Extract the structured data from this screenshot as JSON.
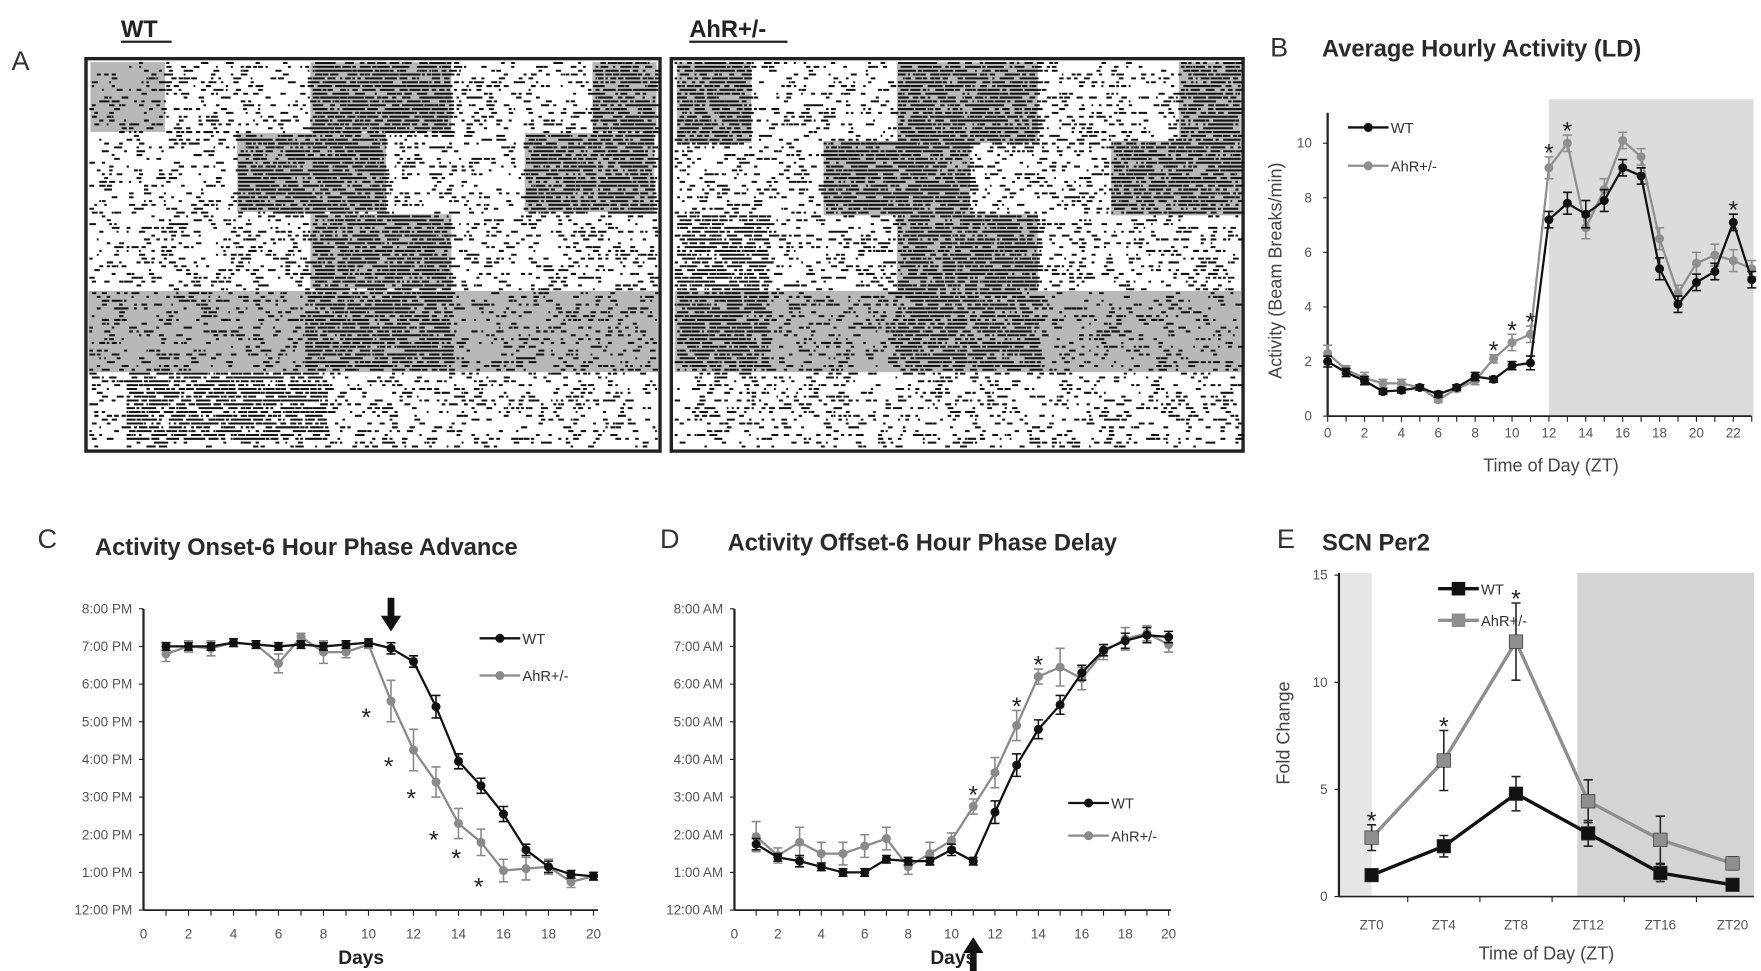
{
  "panel_labels": {
    "A": "A",
    "B": "B",
    "C": "C",
    "D": "D",
    "E": "E"
  },
  "actogram": {
    "wt_label": "WT",
    "ahr_label": "AhR+/-"
  },
  "chart_data": [
    {
      "id": "B",
      "type": "line",
      "title": "Average Hourly Activity (LD)",
      "xlabel": "Time of Day (ZT)",
      "ylabel": "Activity (Beam Breaks/min)",
      "x": [
        0,
        1,
        2,
        3,
        4,
        5,
        6,
        7,
        8,
        9,
        10,
        11,
        12,
        13,
        14,
        15,
        16,
        17,
        18,
        19,
        20,
        21,
        22,
        23
      ],
      "xticks": [
        0,
        2,
        4,
        6,
        8,
        10,
        12,
        14,
        16,
        18,
        20,
        22
      ],
      "yticks": [
        {
          "v": 0,
          "label": "0"
        },
        {
          "v": 2,
          "label": "2"
        },
        {
          "v": 4,
          "label": "4"
        },
        {
          "v": 6,
          "label": "6"
        },
        {
          "v": 8,
          "label": "8"
        },
        {
          "v": 10,
          "label": "10"
        }
      ],
      "ylim": [
        0,
        10.8
      ],
      "shaded_regions": [
        {
          "from": 12,
          "to": 23.1,
          "shade": "#dcdcdc"
        }
      ],
      "series": [
        {
          "name": "WT",
          "color": "#111111",
          "marker": "circle",
          "values": [
            2.0,
            1.6,
            1.3,
            0.9,
            0.95,
            1.05,
            0.8,
            1.05,
            1.45,
            1.35,
            1.85,
            1.95,
            7.2,
            7.8,
            7.4,
            7.9,
            9.1,
            8.8,
            5.4,
            4.1,
            4.9,
            5.3,
            7.1,
            5.0
          ],
          "errors": [
            0.2,
            0.15,
            0.15,
            0.1,
            0.1,
            0.1,
            0.1,
            0.1,
            0.15,
            0.1,
            0.15,
            0.25,
            0.3,
            0.4,
            0.5,
            0.4,
            0.3,
            0.3,
            0.4,
            0.3,
            0.3,
            0.3,
            0.3,
            0.3
          ]
        },
        {
          "name": "AhR+/-",
          "color": "#8f8f8f",
          "marker": "circle",
          "values": [
            2.3,
            1.7,
            1.4,
            1.2,
            1.2,
            1.05,
            0.6,
            1.0,
            1.3,
            2.1,
            2.7,
            3.0,
            9.1,
            10.0,
            6.9,
            8.3,
            10.1,
            9.5,
            6.5,
            4.5,
            5.6,
            5.9,
            5.7,
            5.4
          ],
          "errors": [
            0.3,
            0.15,
            0.2,
            0.15,
            0.15,
            0.1,
            0.1,
            0.1,
            0.15,
            0.15,
            0.3,
            0.3,
            0.4,
            0.3,
            0.4,
            0.4,
            0.3,
            0.3,
            0.4,
            0.3,
            0.4,
            0.4,
            0.4,
            0.3
          ]
        }
      ],
      "significant": [
        9,
        10,
        11,
        12,
        13,
        22
      ],
      "asterisk": "*",
      "legend": "top-left"
    },
    {
      "id": "C",
      "type": "line",
      "title": "Activity Onset-6 Hour Phase Advance",
      "xlabel": "Days",
      "ylabel": "",
      "x": [
        1,
        2,
        3,
        4,
        5,
        6,
        7,
        8,
        9,
        10,
        11,
        12,
        13,
        14,
        15,
        16,
        17,
        18,
        19,
        20
      ],
      "xticks": [
        0,
        2,
        4,
        6,
        8,
        10,
        12,
        14,
        16,
        18,
        20
      ],
      "yticks": [
        {
          "v": 12,
          "label": "12:00 PM"
        },
        {
          "v": 13,
          "label": "1:00 PM"
        },
        {
          "v": 14,
          "label": "2:00 PM"
        },
        {
          "v": 15,
          "label": "3:00 PM"
        },
        {
          "v": 16,
          "label": "4:00 PM"
        },
        {
          "v": 17,
          "label": "5:00 PM"
        },
        {
          "v": 18,
          "label": "6:00 PM"
        },
        {
          "v": 19,
          "label": "7:00 PM"
        },
        {
          "v": 20,
          "label": "8:00 PM"
        }
      ],
      "ylim": [
        12,
        20
      ],
      "series": [
        {
          "name": "WT",
          "color": "#111111",
          "marker": "circle",
          "values": [
            19.0,
            19.0,
            19.0,
            19.1,
            19.05,
            19.0,
            19.05,
            19.0,
            19.05,
            19.1,
            18.95,
            18.6,
            17.4,
            15.95,
            15.3,
            14.55,
            13.6,
            13.15,
            12.95,
            12.9
          ],
          "errors": [
            0.1,
            0.1,
            0.1,
            0.1,
            0.1,
            0.1,
            0.1,
            0.1,
            0.1,
            0.1,
            0.15,
            0.15,
            0.3,
            0.2,
            0.2,
            0.2,
            0.15,
            0.15,
            0.1,
            0.1
          ]
        },
        {
          "name": "AhR+/-",
          "color": "#8a8a8a",
          "marker": "circle",
          "values": [
            18.8,
            19.0,
            18.95,
            19.1,
            19.05,
            18.55,
            19.25,
            18.85,
            18.85,
            19.05,
            17.55,
            16.25,
            15.4,
            14.3,
            13.8,
            13.05,
            13.1,
            13.15,
            12.75,
            12.9
          ],
          "errors": [
            0.2,
            0.15,
            0.2,
            0.1,
            0.1,
            0.25,
            0.1,
            0.3,
            0.15,
            0.1,
            0.55,
            0.55,
            0.4,
            0.4,
            0.35,
            0.3,
            0.3,
            0.2,
            0.15,
            0.1
          ]
        }
      ],
      "significant": [
        11,
        12,
        13,
        14,
        15,
        16
      ],
      "asterisk": "*",
      "shift_marker": {
        "day": 11,
        "direction": "down"
      },
      "legend": "top-right"
    },
    {
      "id": "D",
      "type": "line",
      "title": "Activity Offset-6 Hour Phase Delay",
      "xlabel": "Days",
      "ylabel": "",
      "x": [
        1,
        2,
        3,
        4,
        5,
        6,
        7,
        8,
        9,
        10,
        11,
        12,
        13,
        14,
        15,
        16,
        17,
        18,
        19,
        20
      ],
      "xticks": [
        0,
        2,
        4,
        6,
        8,
        10,
        12,
        14,
        16,
        18,
        20
      ],
      "yticks": [
        {
          "v": 0,
          "label": "12:00 AM"
        },
        {
          "v": 1,
          "label": "1:00 AM"
        },
        {
          "v": 2,
          "label": "2:00 AM"
        },
        {
          "v": 3,
          "label": "3:00 AM"
        },
        {
          "v": 4,
          "label": "4:00 AM"
        },
        {
          "v": 5,
          "label": "5:00 AM"
        },
        {
          "v": 6,
          "label": "6:00 AM"
        },
        {
          "v": 7,
          "label": "7:00 AM"
        },
        {
          "v": 8,
          "label": "8:00 AM"
        }
      ],
      "ylim": [
        0,
        8
      ],
      "series": [
        {
          "name": "WT",
          "color": "#111111",
          "marker": "circle",
          "values": [
            1.75,
            1.4,
            1.3,
            1.15,
            1.0,
            1.0,
            1.35,
            1.3,
            1.3,
            1.6,
            1.3,
            2.6,
            3.85,
            4.8,
            5.45,
            6.3,
            6.9,
            7.15,
            7.3,
            7.25
          ],
          "errors": [
            0.15,
            0.1,
            0.15,
            0.1,
            0.1,
            0.1,
            0.1,
            0.1,
            0.1,
            0.15,
            0.1,
            0.3,
            0.3,
            0.25,
            0.25,
            0.2,
            0.15,
            0.2,
            0.2,
            0.15
          ]
        },
        {
          "name": "AhR+/-",
          "color": "#8a8a8a",
          "marker": "circle",
          "values": [
            1.95,
            1.45,
            1.8,
            1.5,
            1.5,
            1.7,
            1.9,
            1.15,
            1.5,
            1.85,
            2.75,
            3.65,
            4.9,
            6.2,
            6.45,
            6.15,
            6.85,
            7.2,
            7.35,
            7.05
          ],
          "errors": [
            0.4,
            0.2,
            0.4,
            0.3,
            0.3,
            0.3,
            0.3,
            0.2,
            0.3,
            0.2,
            0.2,
            0.4,
            0.4,
            0.2,
            0.5,
            0.3,
            0.2,
            0.3,
            0.2,
            0.2
          ]
        }
      ],
      "significant": [
        11,
        13,
        14
      ],
      "asterisk": "*",
      "shift_marker": {
        "day": 11,
        "direction": "up"
      },
      "legend": "bottom-right"
    },
    {
      "id": "E",
      "type": "line",
      "title": "SCN Per2",
      "xlabel": "Time of Day (ZT)",
      "ylabel": "Fold Change",
      "categories": [
        "ZT0",
        "ZT4",
        "ZT8",
        "ZT12",
        "ZT16",
        "ZT20"
      ],
      "yticks": [
        {
          "v": 0,
          "label": "0"
        },
        {
          "v": 5,
          "label": "5"
        },
        {
          "v": 10,
          "label": "10"
        },
        {
          "v": 15,
          "label": "15"
        }
      ],
      "ylim": [
        0,
        15
      ],
      "shaded_regions": [
        {
          "from": -0.45,
          "to": 0,
          "shade": "#e6e6e6"
        },
        {
          "from": 2.85,
          "to": 5.3,
          "shade": "#d4d4d4"
        }
      ],
      "series": [
        {
          "name": "WT",
          "color": "#111111",
          "marker": "square",
          "values": [
            1.0,
            2.35,
            4.8,
            2.95,
            1.1,
            0.55
          ],
          "errors": [
            0.2,
            0.5,
            0.8,
            0.6,
            0.4,
            0.2
          ]
        },
        {
          "name": "AhR+/-",
          "color": "#8f8f8f",
          "marker": "square",
          "values": [
            2.75,
            6.35,
            11.9,
            4.45,
            2.65,
            1.55
          ],
          "errors": [
            0.6,
            1.4,
            1.8,
            1.0,
            1.1,
            0.3
          ]
        }
      ],
      "significant": [
        0,
        1,
        2
      ],
      "asterisk": "*",
      "legend": "top-left"
    }
  ]
}
